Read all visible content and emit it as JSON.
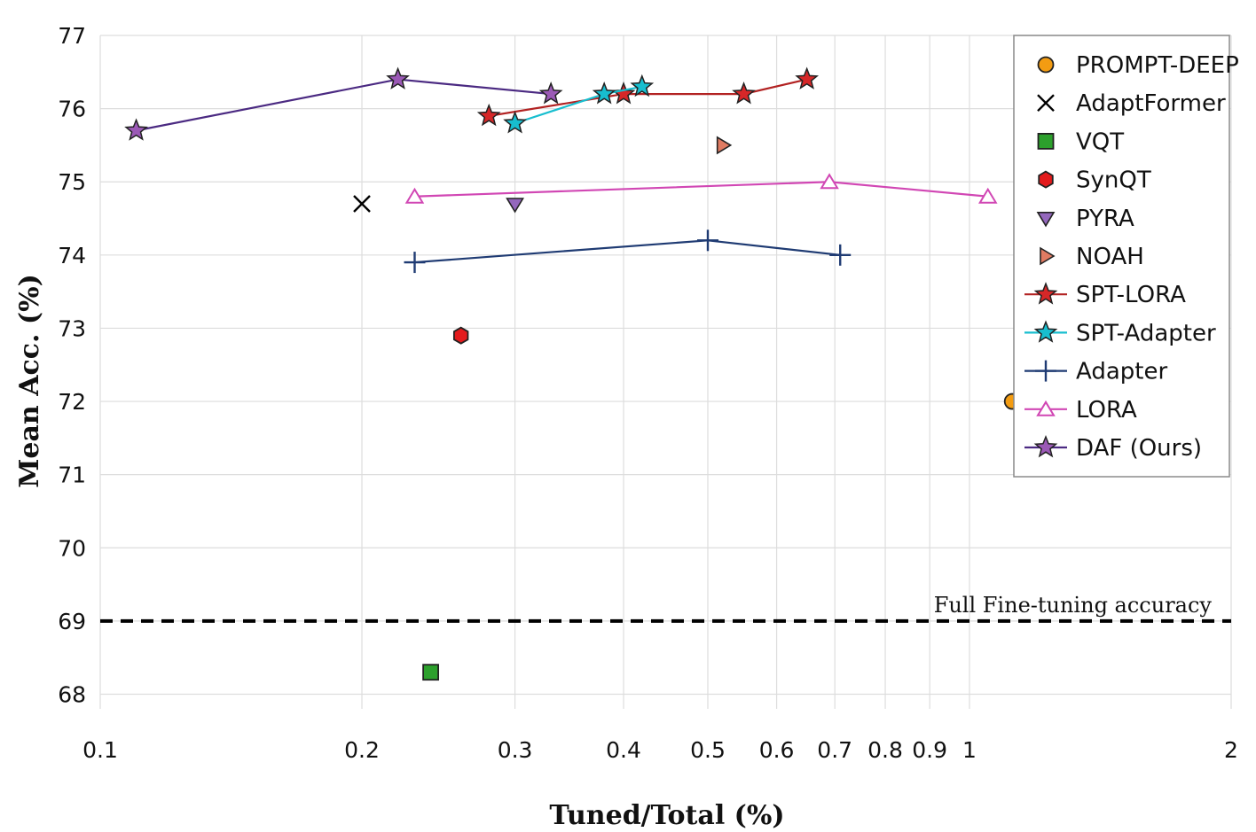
{
  "chart_data": {
    "type": "scatter",
    "title": "",
    "xlabel": "Tuned/Total (%)",
    "ylabel": "Mean Acc. (%)",
    "xscale": "log",
    "xlim": [
      0.1,
      2
    ],
    "ylim": [
      67.8,
      77
    ],
    "xticks": [
      0.1,
      0.2,
      0.3,
      0.4,
      0.5,
      0.6,
      0.7,
      0.8,
      0.9,
      1,
      2
    ],
    "xtick_labels": [
      "0.1",
      "0.2",
      "0.3",
      "0.4",
      "0.5",
      "0.6",
      "0.7",
      "0.8",
      "0.9",
      "1",
      "2"
    ],
    "yticks": [
      68,
      69,
      70,
      71,
      72,
      73,
      74,
      75,
      76,
      77
    ],
    "ytick_labels": [
      "68",
      "69",
      "70",
      "71",
      "72",
      "73",
      "74",
      "75",
      "76",
      "77"
    ],
    "grid": true,
    "legend_position": "top-right",
    "reference_line": {
      "y": 69,
      "label": "Full Fine-tuning accuracy",
      "style": "dashed",
      "color": "#000000"
    },
    "series": [
      {
        "name": "PROMPT-DEEP",
        "marker": "circle",
        "color": "#f39c12",
        "line": false,
        "points": [
          [
            1.12,
            72.0
          ]
        ]
      },
      {
        "name": "AdaptFormer",
        "marker": "x",
        "color": "#000000",
        "line": false,
        "points": [
          [
            0.2,
            74.7
          ]
        ]
      },
      {
        "name": "VQT",
        "marker": "square",
        "color": "#2ca02c",
        "line": false,
        "points": [
          [
            0.24,
            68.3
          ]
        ]
      },
      {
        "name": "SynQT",
        "marker": "hexagon",
        "color": "#e31a1c",
        "line": false,
        "points": [
          [
            0.26,
            72.9
          ]
        ]
      },
      {
        "name": "PYRA",
        "marker": "triangle-down",
        "color": "#9467bd",
        "line": false,
        "points": [
          [
            0.3,
            74.7
          ]
        ]
      },
      {
        "name": "NOAH",
        "marker": "triangle-right",
        "color": "#e07b62",
        "line": false,
        "points": [
          [
            0.52,
            75.5
          ]
        ]
      },
      {
        "name": "SPT-LORA",
        "marker": "star",
        "color": "#d62728",
        "line": true,
        "points": [
          [
            0.28,
            75.9
          ],
          [
            0.4,
            76.2
          ],
          [
            0.55,
            76.2
          ],
          [
            0.65,
            76.4
          ]
        ]
      },
      {
        "name": "SPT-Adapter",
        "marker": "star",
        "color": "#17becf",
        "line": true,
        "points": [
          [
            0.3,
            75.8
          ],
          [
            0.38,
            76.2
          ],
          [
            0.42,
            76.3
          ]
        ]
      },
      {
        "name": "Adapter",
        "marker": "plus",
        "color": "#1f3b73",
        "line": true,
        "points": [
          [
            0.23,
            73.9
          ],
          [
            0.5,
            74.2
          ],
          [
            0.71,
            74.0
          ]
        ]
      },
      {
        "name": "LORA",
        "marker": "triangle-up-open",
        "color": "#d147b4",
        "line": true,
        "points": [
          [
            0.23,
            74.8
          ],
          [
            0.69,
            75.0
          ],
          [
            1.05,
            74.8
          ]
        ]
      },
      {
        "name": "DAF (Ours)",
        "marker": "star",
        "color": "#9b59b6",
        "line": true,
        "points": [
          [
            0.11,
            75.7
          ],
          [
            0.22,
            76.4
          ],
          [
            0.33,
            76.2
          ]
        ]
      }
    ]
  }
}
